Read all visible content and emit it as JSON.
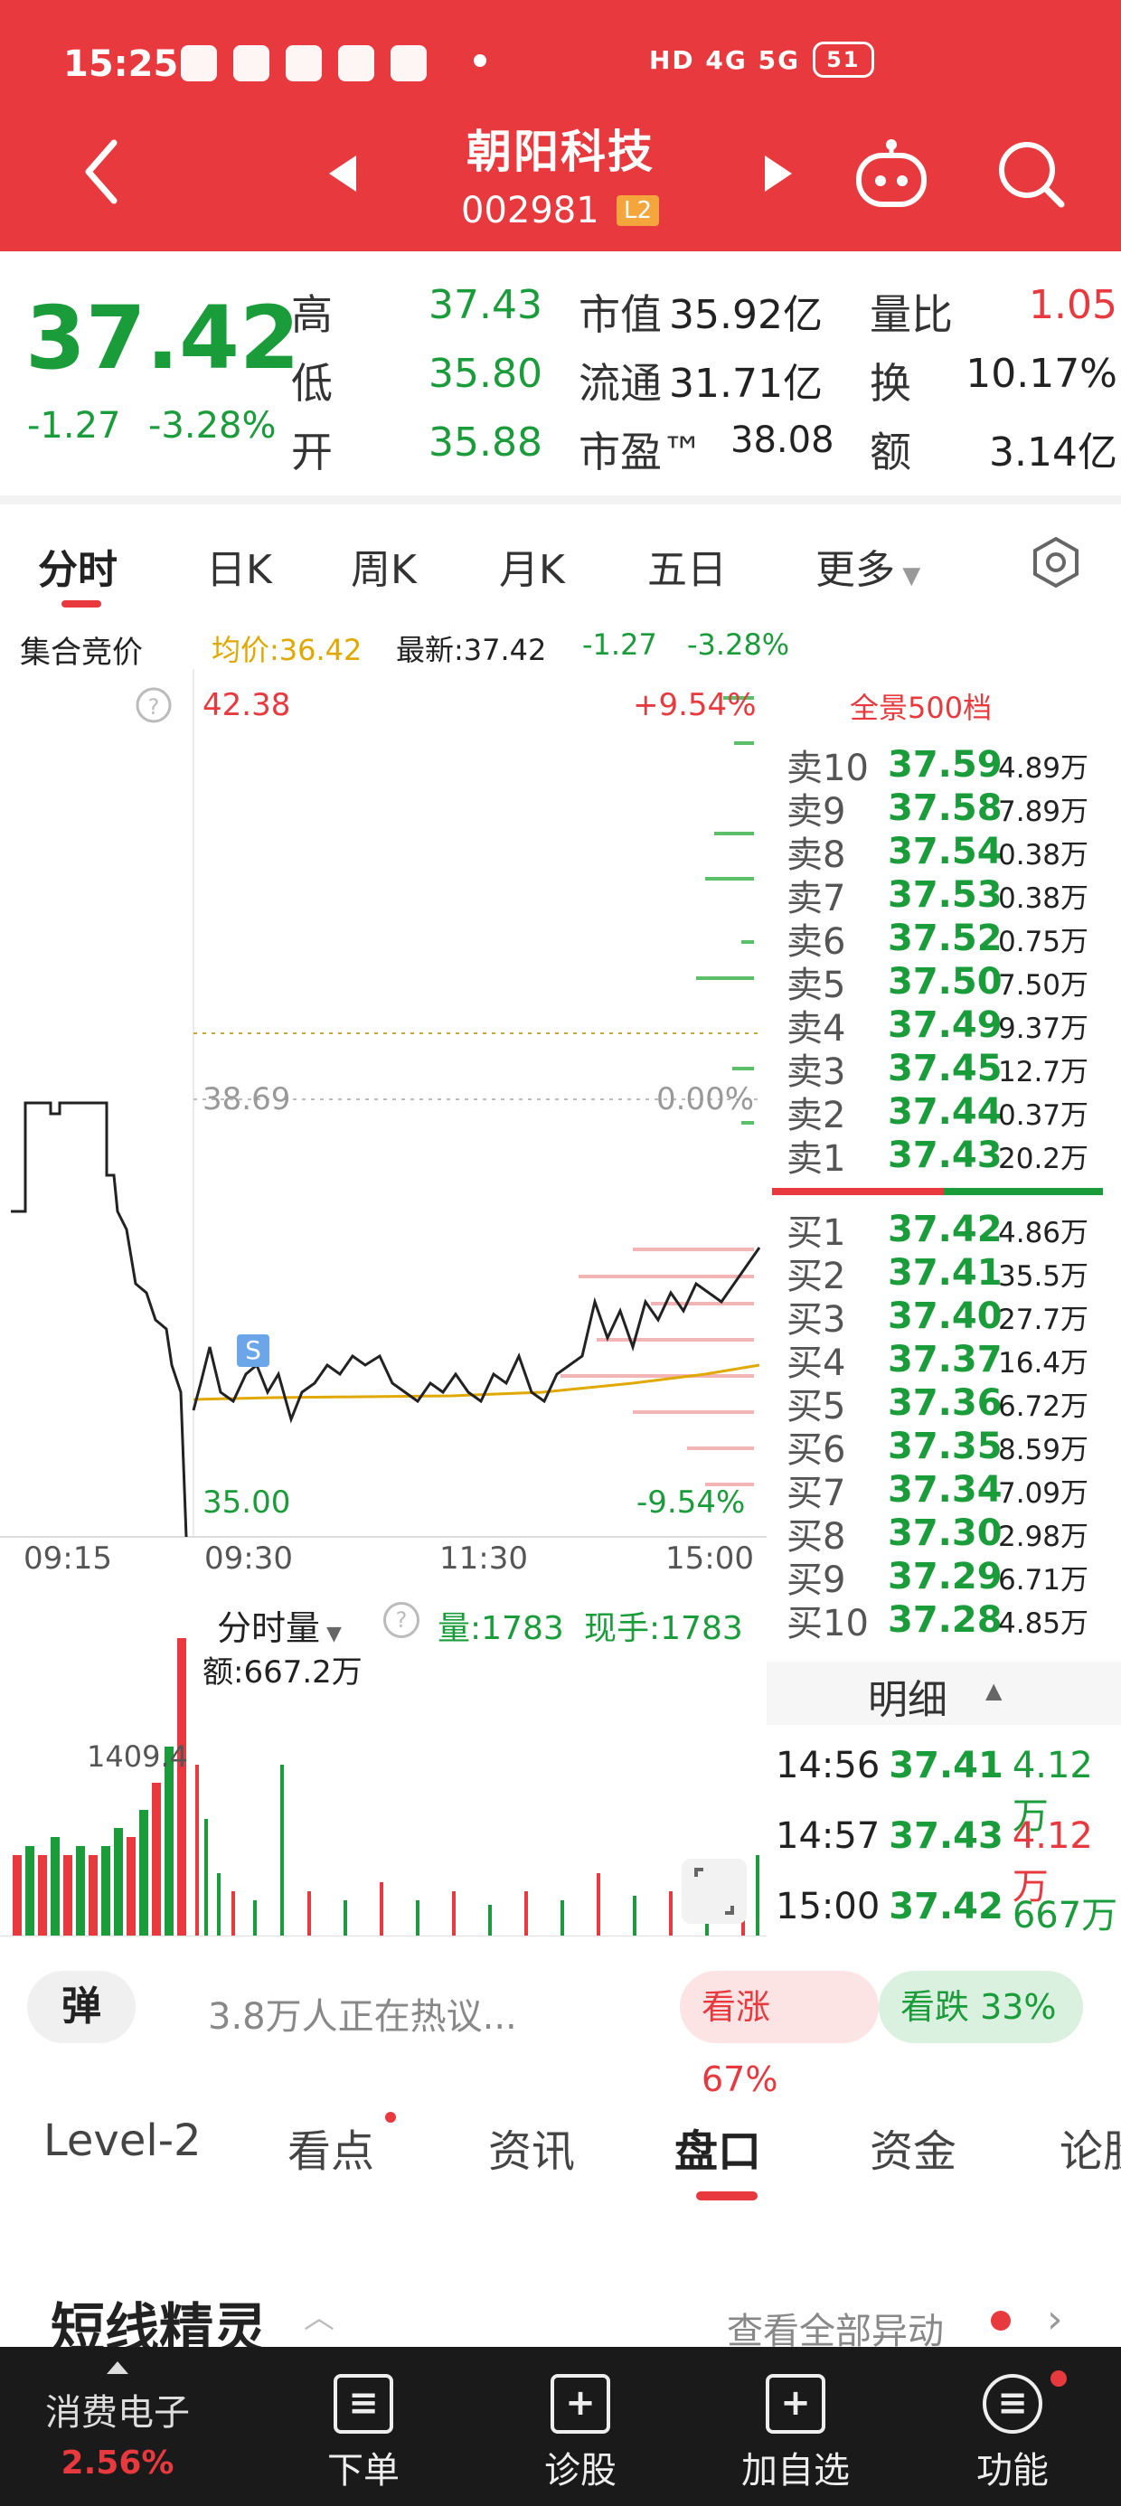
{
  "status": {
    "time": "15:25",
    "net": "HD 4G 5G",
    "battery": "51"
  },
  "header": {
    "title": "朝阳科技",
    "code": "002981",
    "level": "L2"
  },
  "quote": {
    "price": "37.42",
    "change": "-1.27",
    "change_pct": "-3.28%",
    "high_label": "高",
    "high": "37.43",
    "low_label": "低",
    "low": "35.80",
    "open_label": "开",
    "open": "35.88",
    "mcap_label": "市值",
    "mcap": "35.92亿",
    "float_label": "流通",
    "float": "31.71亿",
    "pe_label": "市盈™",
    "pe": "38.08",
    "vr_label": "量比",
    "vr": "1.05",
    "turn_label": "换",
    "turn": "10.17%",
    "amt_label": "额",
    "amt": "3.14亿"
  },
  "tabs": [
    "分时",
    "日K",
    "周K",
    "月K",
    "五日",
    "更多"
  ],
  "info": {
    "auction": "集合竞价",
    "avg": "均价:36.42",
    "latest": "最新:37.42",
    "chg": "-1.27",
    "pct": "-3.28%"
  },
  "chart_labels": {
    "top_price": "42.38",
    "top_pct": "+9.54%",
    "mid_price": "38.69",
    "mid_pct": "0.00%",
    "bot_price": "35.00",
    "bot_pct": "-9.54%",
    "t0": "09:15",
    "t1": "09:30",
    "t2": "11:30",
    "t3": "15:00",
    "s_mark": "S"
  },
  "vol_labels": {
    "title": "分时量",
    "vol": "量:1783",
    "cur": "现手:1783",
    "amt": "额:667.2万",
    "peak": "1409.4"
  },
  "orderbook": {
    "title": "全景500档",
    "sells": [
      {
        "side": "卖10",
        "price": "37.59",
        "vol": "4.89万"
      },
      {
        "side": "卖9",
        "price": "37.58",
        "vol": "7.89万"
      },
      {
        "side": "卖8",
        "price": "37.54",
        "vol": "0.38万"
      },
      {
        "side": "卖7",
        "price": "37.53",
        "vol": "0.38万"
      },
      {
        "side": "卖6",
        "price": "37.52",
        "vol": "0.75万"
      },
      {
        "side": "卖5",
        "price": "37.50",
        "vol": "7.50万"
      },
      {
        "side": "卖4",
        "price": "37.49",
        "vol": "9.37万"
      },
      {
        "side": "卖3",
        "price": "37.45",
        "vol": "12.7万"
      },
      {
        "side": "卖2",
        "price": "37.44",
        "vol": "0.37万"
      },
      {
        "side": "卖1",
        "price": "37.43",
        "vol": "20.2万"
      }
    ],
    "buys": [
      {
        "side": "买1",
        "price": "37.42",
        "vol": "4.86万"
      },
      {
        "side": "买2",
        "price": "37.41",
        "vol": "35.5万"
      },
      {
        "side": "买3",
        "price": "37.40",
        "vol": "27.7万"
      },
      {
        "side": "买4",
        "price": "37.37",
        "vol": "16.4万"
      },
      {
        "side": "买5",
        "price": "37.36",
        "vol": "6.72万"
      },
      {
        "side": "买6",
        "price": "37.35",
        "vol": "8.59万"
      },
      {
        "side": "买7",
        "price": "37.34",
        "vol": "7.09万"
      },
      {
        "side": "买8",
        "price": "37.30",
        "vol": "2.98万"
      },
      {
        "side": "买9",
        "price": "37.29",
        "vol": "6.71万"
      },
      {
        "side": "买10",
        "price": "37.28",
        "vol": "4.85万"
      }
    ]
  },
  "detail": {
    "title": "明细",
    "rows": [
      {
        "time": "14:56",
        "price": "37.41",
        "vol": "4.12万",
        "color": "#1a9c3b"
      },
      {
        "time": "14:57",
        "price": "37.43",
        "vol": "4.12万",
        "color": "#e8393e"
      },
      {
        "time": "15:00",
        "price": "37.42",
        "vol": "667万",
        "color": "#1a9c3b"
      }
    ]
  },
  "sentiment": {
    "danmu": "弹",
    "discuss": "3.8万人正在热议...",
    "up": "看涨 67%",
    "down": "看跌 33%"
  },
  "bottom_tabs": [
    "Level-2",
    "看点",
    "资讯",
    "盘口",
    "资金",
    "论股"
  ],
  "section": {
    "title": "短线精灵",
    "more": "查看全部异动"
  },
  "nav": {
    "sector": "消费电子",
    "sector_pct": "2.56%",
    "items": [
      "下单",
      "诊股",
      "加自选",
      "功能"
    ]
  },
  "colors": {
    "brand": "#e8393e",
    "down": "#1a9c3b",
    "avg": "#e0a800"
  }
}
